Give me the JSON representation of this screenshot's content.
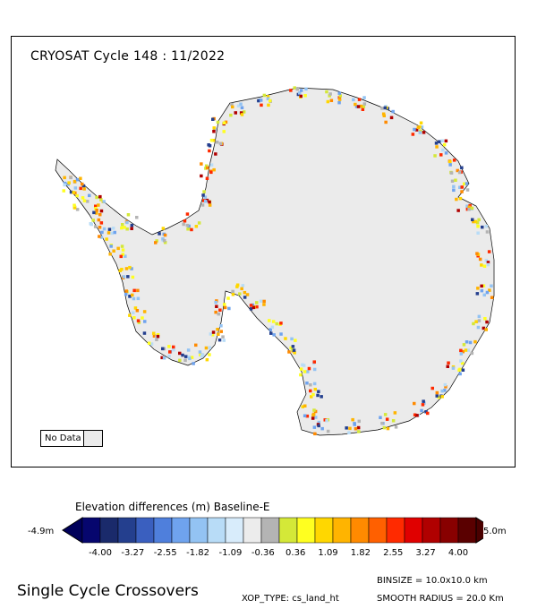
{
  "map": {
    "title": "CRYOSAT Cycle 148 : 11/2022",
    "no_data_label": "No Data",
    "no_data_color": "#ebebeb",
    "background_color": "#ebebeb"
  },
  "colorbar": {
    "title": "Elevation differences (m) Baseline-E",
    "min_label": "-4.9m",
    "max_label": "5.0m",
    "tick_labels": [
      "-4.00",
      "-3.27",
      "-2.55",
      "-1.82",
      "-1.09",
      "-0.36",
      "0.36",
      "1.09",
      "1.82",
      "2.55",
      "3.27",
      "4.00"
    ],
    "colors": [
      "#06066e",
      "#1a2a6b",
      "#243f8e",
      "#3a5fbf",
      "#4f7fdc",
      "#6fa3ee",
      "#93c3f3",
      "#b8dcf7",
      "#d8ecfb",
      "#ececec",
      "#b4b4b4",
      "#d4e838",
      "#ffff20",
      "#ffd700",
      "#ffb400",
      "#ff8a00",
      "#ff6000",
      "#ff2a00",
      "#e00000",
      "#b00000",
      "#880000",
      "#5a0000"
    ],
    "low_color": "#00005a",
    "high_color": "#4a0000"
  },
  "footer": {
    "title": "Single Cycle Crossovers",
    "binsize": "BINSIZE = 10.0x10.0 km",
    "xop_type": "XOP_TYPE: cs_land_ht",
    "smooth_radius": "SMOOTH RADIUS = 20.0 Km"
  }
}
